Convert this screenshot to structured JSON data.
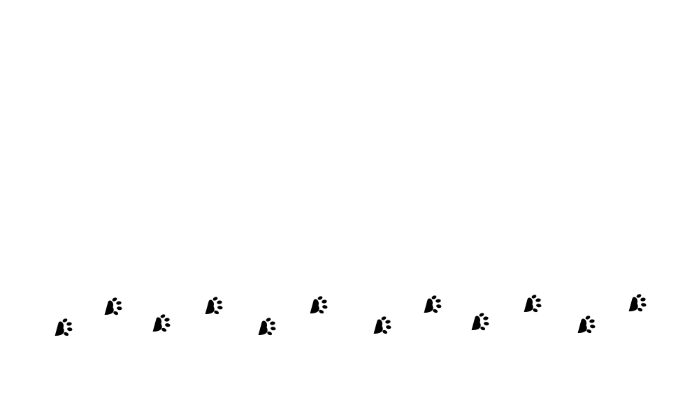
{
  "scene": {
    "background": "#ffffff",
    "print_color": "#000000",
    "icon": "paw-print-icon",
    "paw_count": 12
  }
}
